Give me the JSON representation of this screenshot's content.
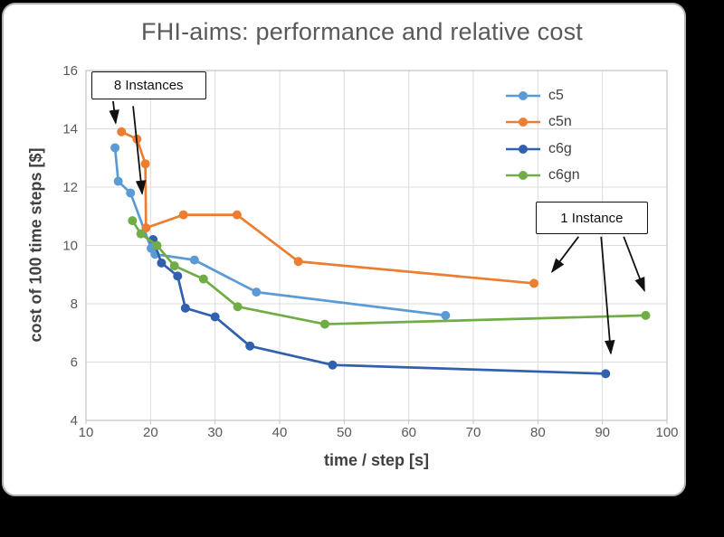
{
  "title": "FHI-aims: performance and relative cost",
  "chart_data": {
    "type": "line",
    "title": "FHI-aims: performance and relative cost",
    "xlabel": "time / step [s]",
    "ylabel": "cost of 100 time steps [$]",
    "xlim": [
      10,
      100
    ],
    "ylim": [
      4,
      16
    ],
    "x_ticks": [
      10,
      20,
      30,
      40,
      50,
      60,
      70,
      80,
      90,
      100
    ],
    "y_ticks": [
      4,
      6,
      8,
      10,
      12,
      14,
      16
    ],
    "grid": true,
    "legend_position": "top-right-inside",
    "series": [
      {
        "name": "c5",
        "color": "#5B9BD5",
        "points": [
          [
            14.5,
            13.35
          ],
          [
            15.0,
            12.2
          ],
          [
            16.9,
            11.8
          ],
          [
            20.1,
            9.9
          ],
          [
            20.7,
            9.7
          ],
          [
            26.8,
            9.5
          ],
          [
            36.4,
            8.4
          ],
          [
            65.7,
            7.6
          ]
        ]
      },
      {
        "name": "c5n",
        "color": "#ED7D31",
        "points": [
          [
            15.5,
            13.9
          ],
          [
            17.9,
            13.65
          ],
          [
            19.2,
            12.8
          ],
          [
            19.3,
            10.6
          ],
          [
            25.1,
            11.05
          ],
          [
            33.4,
            11.05
          ],
          [
            42.9,
            9.45
          ],
          [
            79.4,
            8.7
          ]
        ]
      },
      {
        "name": "c6g",
        "color": "#3060AE",
        "points": [
          [
            20.4,
            10.2
          ],
          [
            21.7,
            9.4
          ],
          [
            24.2,
            8.95
          ],
          [
            25.4,
            7.85
          ],
          [
            30.0,
            7.55
          ],
          [
            35.4,
            6.55
          ],
          [
            48.2,
            5.9
          ],
          [
            90.5,
            5.6
          ]
        ]
      },
      {
        "name": "c6gn",
        "color": "#70AD47",
        "points": [
          [
            17.2,
            10.85
          ],
          [
            18.5,
            10.4
          ],
          [
            21.0,
            10.0
          ],
          [
            23.7,
            9.3
          ],
          [
            28.2,
            8.85
          ],
          [
            33.5,
            7.9
          ],
          [
            47.0,
            7.3
          ],
          [
            96.7,
            7.6
          ]
        ]
      }
    ],
    "annotations": [
      {
        "label": "8 Instances",
        "box": {
          "x1": 10.8,
          "y1": 15.97,
          "x2": 28.6,
          "y2": 15.0
        },
        "arrows": [
          {
            "from": [
              14.2,
              14.95
            ],
            "to": [
              14.6,
              14.2
            ]
          },
          {
            "from": [
              17.3,
              14.78
            ],
            "to": [
              18.7,
              11.78
            ]
          }
        ]
      },
      {
        "label": "1 Instance",
        "box": {
          "x1": 79.7,
          "y1": 11.5,
          "x2": 97.0,
          "y2": 10.38
        },
        "arrows": [
          {
            "from": [
              86.3,
              10.3
            ],
            "to": [
              82.2,
              9.1
            ]
          },
          {
            "from": [
              89.8,
              10.3
            ],
            "to": [
              91.3,
              6.3
            ]
          },
          {
            "from": [
              93.3,
              10.3
            ],
            "to": [
              96.5,
              8.45
            ]
          }
        ]
      }
    ]
  },
  "colors": {
    "grid": "#DCDCDC",
    "plot_border": "#C3C3C3",
    "tick_text": "#595959",
    "axis_title_text": "#404040",
    "title_text": "#595959",
    "annotation_ink": "#111111",
    "card_bg": "#FFFFFF",
    "stage_bg": "#000000"
  }
}
